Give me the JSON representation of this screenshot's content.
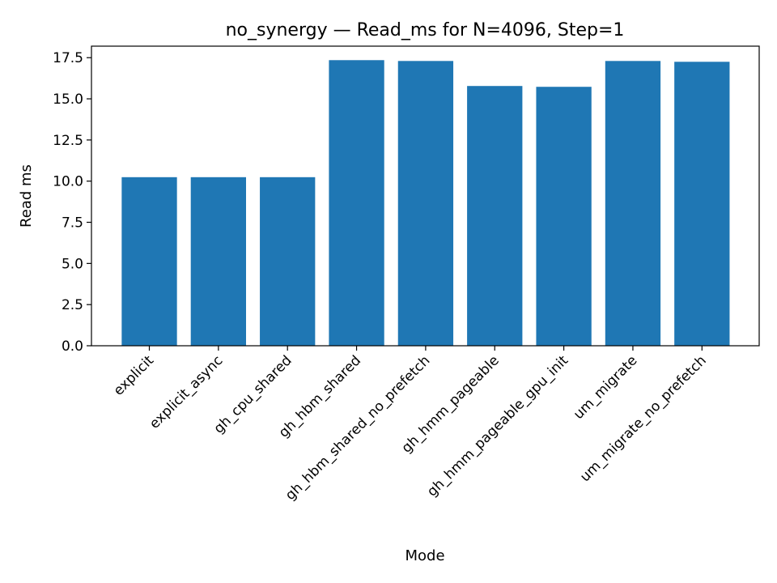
{
  "chart_data": {
    "type": "bar",
    "title": "no_synergy — Read_ms for N=4096, Step=1",
    "xlabel": "Mode",
    "ylabel": "Read ms",
    "categories": [
      "explicit",
      "explicit_async",
      "gh_cpu_shared",
      "gh_hbm_shared",
      "gh_hbm_shared_no_prefetch",
      "gh_hmm_pageable",
      "gh_hmm_pageable_gpu_init",
      "um_migrate",
      "um_migrate_no_prefetch"
    ],
    "values": [
      10.24,
      10.24,
      10.24,
      17.35,
      17.3,
      15.78,
      15.73,
      17.3,
      17.25
    ],
    "ylim": [
      0,
      18.2
    ],
    "yticks": [
      0.0,
      2.5,
      5.0,
      7.5,
      10.0,
      12.5,
      15.0,
      17.5
    ],
    "ytick_labels": [
      "0.0",
      "2.5",
      "5.0",
      "7.5",
      "10.0",
      "12.5",
      "15.0",
      "17.5"
    ],
    "grid": false,
    "legend": "none",
    "bar_color": "#1f77b4"
  }
}
